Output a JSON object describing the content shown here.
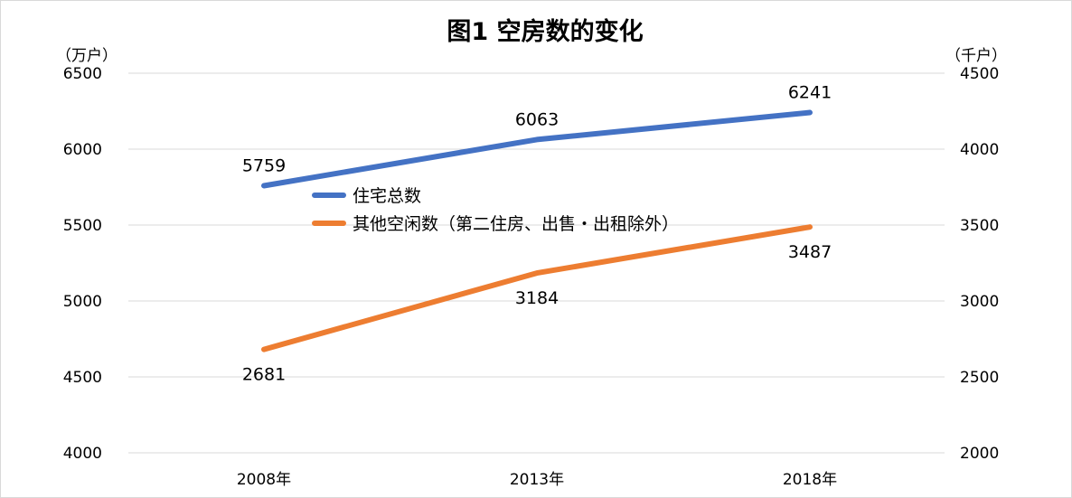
{
  "chart_data": {
    "type": "line",
    "title": "图1  空房数的变化",
    "categories": [
      "2008年",
      "2013年",
      "2018年"
    ],
    "y_left": {
      "unit": "（万户）",
      "ylim": [
        4000,
        6500
      ],
      "ticks": [
        4000,
        4500,
        5000,
        5500,
        6000,
        6500
      ]
    },
    "y_right": {
      "unit": "（千户）",
      "ylim": [
        2000,
        4500
      ],
      "ticks": [
        2000,
        2500,
        3000,
        3500,
        4000,
        4500
      ]
    },
    "series": [
      {
        "name": "住宅总数",
        "axis": "left",
        "color": "#4472C4",
        "values": [
          5759,
          6063,
          6241
        ]
      },
      {
        "name": "其他空闲数（第二住房、出售・出租除外）",
        "axis": "right",
        "color": "#ED7D31",
        "values": [
          2681,
          3184,
          3487
        ]
      }
    ],
    "grid": true,
    "legend_position": "center"
  }
}
